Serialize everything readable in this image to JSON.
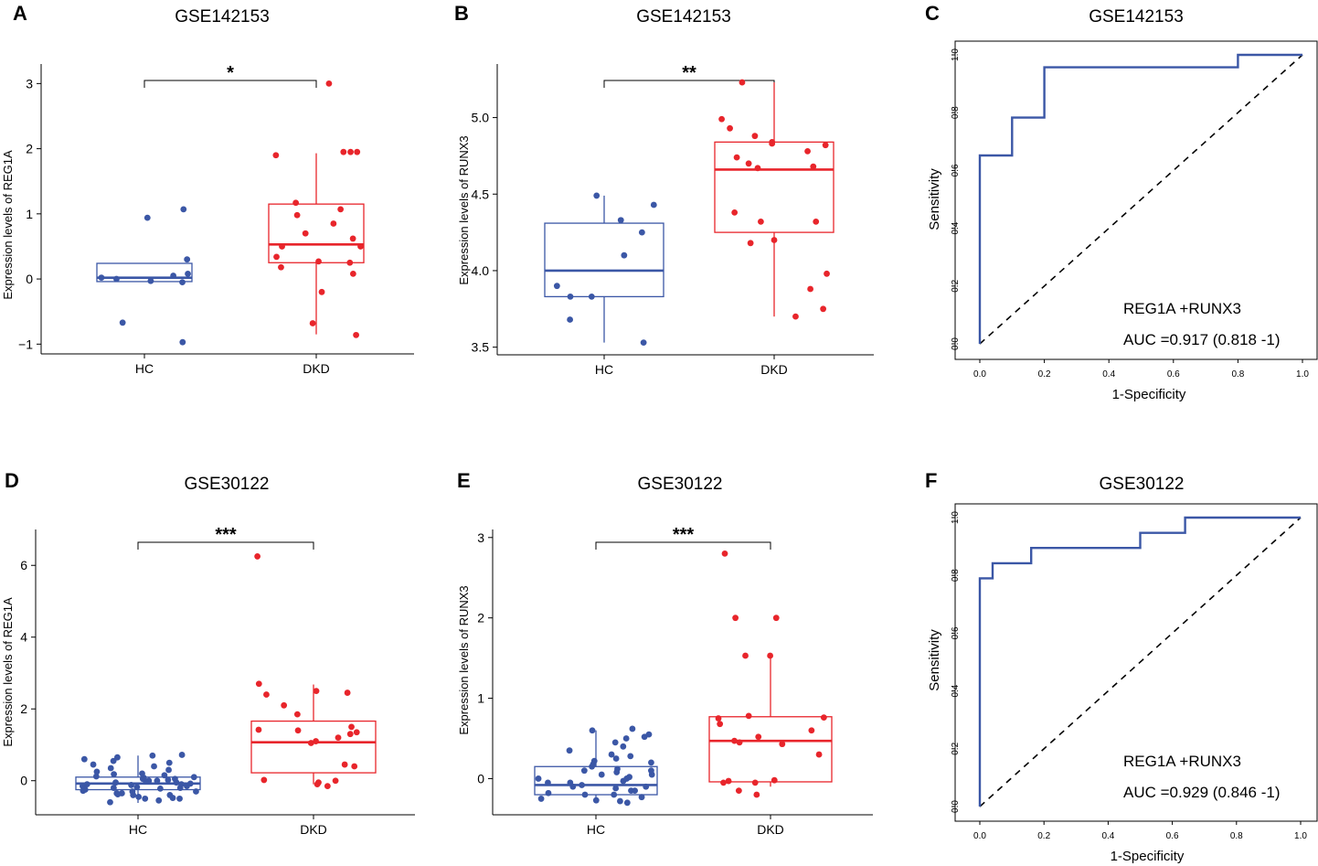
{
  "figure": {
    "background": "#ffffff",
    "hc_color": "#3b57a6",
    "dkd_color": "#e8252b",
    "roc_color": "#3b57a6"
  },
  "chart_data": [
    {
      "panel": "A",
      "type": "box",
      "title": "GSE142153",
      "xlabel": "",
      "ylabel": "Expression levels of REG1A",
      "categories": [
        "HC",
        "DKD"
      ],
      "ylim": [
        -1.15,
        3.3
      ],
      "yticks": [
        -1,
        0,
        1,
        2,
        3
      ],
      "significance": "*",
      "groups": [
        {
          "name": "HC",
          "box": {
            "q1": -0.04,
            "median": 0.02,
            "q3": 0.24,
            "whisker_low": -0.04,
            "whisker_high": 0.24
          },
          "points": [
            -0.97,
            -0.67,
            -0.05,
            -0.03,
            0.0,
            0.02,
            0.05,
            0.08,
            0.3,
            0.94,
            1.07
          ]
        },
        {
          "name": "DKD",
          "box": {
            "q1": 0.25,
            "median": 0.53,
            "q3": 1.15,
            "whisker_low": -0.85,
            "whisker_high": 1.93
          },
          "points": [
            -0.86,
            -0.68,
            -0.2,
            0.08,
            0.18,
            0.25,
            0.27,
            0.34,
            0.5,
            0.5,
            0.62,
            0.7,
            0.85,
            0.98,
            1.07,
            1.17,
            1.9,
            1.95,
            1.95,
            1.95,
            3.0
          ]
        }
      ]
    },
    {
      "panel": "B",
      "type": "box",
      "title": "GSE142153",
      "xlabel": "",
      "ylabel": "Expression levels of RUNX3",
      "categories": [
        "HC",
        "DKD"
      ],
      "ylim": [
        3.45,
        5.35
      ],
      "yticks": [
        3.5,
        4.0,
        4.5,
        5.0
      ],
      "significance": "**",
      "groups": [
        {
          "name": "HC",
          "box": {
            "q1": 3.83,
            "median": 4.0,
            "q3": 4.31,
            "whisker_low": 3.53,
            "whisker_high": 4.49
          },
          "points": [
            3.53,
            3.68,
            3.83,
            3.83,
            3.9,
            4.1,
            4.25,
            4.33,
            4.43,
            4.49
          ]
        },
        {
          "name": "DKD",
          "box": {
            "q1": 4.25,
            "median": 4.66,
            "q3": 4.84,
            "whisker_low": 3.7,
            "whisker_high": 5.23
          },
          "points": [
            3.7,
            3.75,
            3.88,
            3.98,
            4.18,
            4.2,
            4.32,
            4.32,
            4.38,
            4.67,
            4.68,
            4.7,
            4.74,
            4.78,
            4.82,
            4.83,
            4.84,
            4.88,
            4.93,
            4.99,
            5.23
          ]
        }
      ]
    },
    {
      "panel": "C",
      "type": "roc",
      "title": "GSE142153",
      "xlabel": "1-Specificity",
      "ylabel": "Sensitivity",
      "xticks": [
        "0.0",
        "0.2",
        "0.4",
        "0.6",
        "0.8",
        "1.0"
      ],
      "yticks": [
        "0.0",
        "0.2",
        "0.4",
        "0.6",
        "0.8",
        "1.0"
      ],
      "curve_x": [
        0,
        0,
        0,
        0.1,
        0.1,
        0.2,
        0.2,
        0.8,
        0.8,
        1.0
      ],
      "curve_y": [
        0,
        0,
        0.652,
        0.652,
        0.783,
        0.783,
        0.957,
        0.957,
        1.0,
        1.0
      ],
      "legend_model": "REG1A +RUNX3",
      "auc_text": "AUC =0.917 (0.818 -1)"
    },
    {
      "panel": "D",
      "type": "box",
      "title": "GSE30122",
      "xlabel": "",
      "ylabel": "Expression levels of REG1A",
      "categories": [
        "HC",
        "DKD"
      ],
      "ylim": [
        -0.95,
        7.0
      ],
      "yticks": [
        0,
        2,
        4,
        6
      ],
      "significance": "***",
      "groups": [
        {
          "name": "HC",
          "box": {
            "q1": -0.25,
            "median": -0.08,
            "q3": 0.1,
            "whisker_low": -0.62,
            "whisker_high": 0.7
          },
          "points": [
            -0.6,
            -0.55,
            -0.5,
            -0.5,
            -0.48,
            -0.45,
            -0.4,
            -0.4,
            -0.38,
            -0.35,
            -0.35,
            -0.3,
            -0.3,
            -0.28,
            -0.25,
            -0.22,
            -0.2,
            -0.2,
            -0.18,
            -0.15,
            -0.15,
            -0.12,
            -0.1,
            -0.1,
            -0.08,
            -0.05,
            -0.05,
            -0.02,
            0.0,
            0.0,
            0.02,
            0.05,
            0.05,
            0.08,
            0.1,
            0.12,
            0.15,
            0.18,
            0.2,
            0.25,
            0.3,
            0.35,
            0.4,
            0.45,
            0.5,
            0.55,
            0.6,
            0.65,
            0.7,
            0.72
          ]
        },
        {
          "name": "DKD",
          "box": {
            "q1": 0.22,
            "median": 1.07,
            "q3": 1.66,
            "whisker_low": -0.1,
            "whisker_high": 2.68
          },
          "points": [
            -0.15,
            -0.1,
            -0.05,
            0.0,
            0.02,
            0.4,
            0.45,
            1.05,
            1.1,
            1.2,
            1.3,
            1.35,
            1.4,
            1.42,
            1.5,
            1.85,
            2.1,
            2.4,
            2.45,
            2.5,
            2.7,
            6.25
          ]
        }
      ]
    },
    {
      "panel": "E",
      "type": "box",
      "title": "GSE30122",
      "xlabel": "",
      "ylabel": "Expression levels of RUNX3",
      "categories": [
        "HC",
        "DKD"
      ],
      "ylim": [
        -0.45,
        3.1
      ],
      "yticks": [
        0,
        1,
        2,
        3
      ],
      "significance": "***",
      "groups": [
        {
          "name": "HC",
          "box": {
            "q1": -0.2,
            "median": -0.08,
            "q3": 0.15,
            "whisker_low": -0.3,
            "whisker_high": 0.6
          },
          "points": [
            -0.3,
            -0.28,
            -0.27,
            -0.25,
            -0.23,
            -0.2,
            -0.2,
            -0.18,
            -0.15,
            -0.15,
            -0.12,
            -0.1,
            -0.1,
            -0.08,
            -0.05,
            -0.05,
            -0.03,
            0.0,
            0.0,
            0.02,
            0.05,
            0.05,
            0.08,
            0.1,
            0.1,
            0.12,
            0.15,
            0.18,
            0.2,
            0.22,
            0.25,
            0.28,
            0.3,
            0.35,
            0.4,
            0.45,
            0.5,
            0.52,
            0.55,
            0.6,
            0.62
          ]
        },
        {
          "name": "DKD",
          "box": {
            "q1": -0.04,
            "median": 0.47,
            "q3": 0.77,
            "whisker_low": -0.1,
            "whisker_high": 1.53
          },
          "points": [
            -0.2,
            -0.15,
            -0.05,
            -0.05,
            -0.03,
            -0.02,
            0.3,
            0.43,
            0.45,
            0.47,
            0.52,
            0.6,
            0.68,
            0.75,
            0.76,
            0.78,
            1.53,
            1.53,
            2.0,
            2.0,
            2.8
          ]
        }
      ]
    },
    {
      "panel": "F",
      "type": "roc",
      "title": "GSE30122",
      "xlabel": "1-Specificity",
      "ylabel": "Sensitivity",
      "xticks": [
        "0.0",
        "0.2",
        "0.4",
        "0.6",
        "0.8",
        "1.0"
      ],
      "yticks": [
        "0.0",
        "0.2",
        "0.4",
        "0.6",
        "0.8",
        "1.0"
      ],
      "curve_x": [
        0,
        0,
        0,
        0.02,
        0.02,
        0.04,
        0.04,
        0.16,
        0.16,
        0.5,
        0.5,
        0.64,
        0.64,
        1.0
      ],
      "curve_y": [
        0,
        0.21,
        0.79,
        0.79,
        0.79,
        0.79,
        0.842,
        0.842,
        0.895,
        0.895,
        0.947,
        0.947,
        1.0,
        1.0
      ],
      "legend_model": "REG1A +RUNX3",
      "auc_text": "AUC =0.929 (0.846 -1)"
    }
  ]
}
